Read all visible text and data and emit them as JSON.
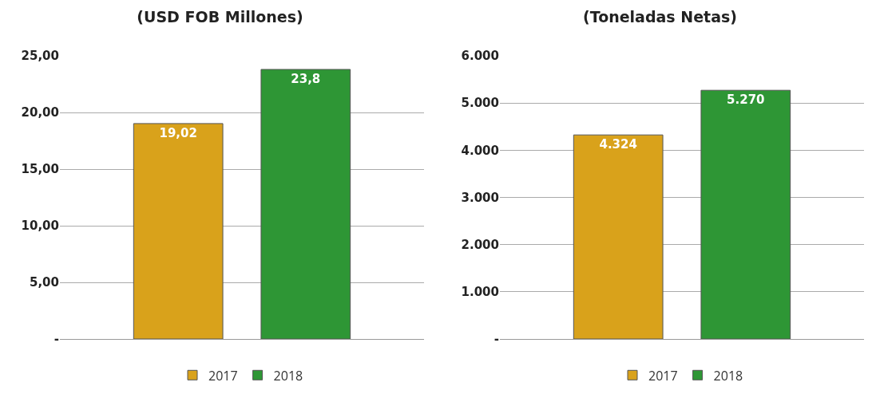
{
  "chart_data": [
    {
      "type": "bar",
      "title": "(USD FOB Millones)",
      "categories": [
        null
      ],
      "series": [
        {
          "name": "2017",
          "color": "#d9a21b",
          "values": [
            19.02
          ],
          "value_labels": [
            "19,02"
          ]
        },
        {
          "name": "2018",
          "color": "#2e9635",
          "values": [
            23.8
          ],
          "value_labels": [
            "23,8"
          ]
        }
      ],
      "ylim": [
        0,
        25
      ],
      "yticks": [
        {
          "value": 0,
          "label": "-"
        },
        {
          "value": 5,
          "label": "5,00"
        },
        {
          "value": 10,
          "label": "10,00"
        },
        {
          "value": 15,
          "label": "15,00"
        },
        {
          "value": 20,
          "label": "20,00"
        },
        {
          "value": 25,
          "label": "25,00"
        }
      ],
      "grid": "y",
      "legend": "bottom"
    },
    {
      "type": "bar",
      "title": "(Toneladas Netas)",
      "categories": [
        null
      ],
      "series": [
        {
          "name": "2017",
          "color": "#d9a21b",
          "values": [
            4324
          ],
          "value_labels": [
            "4.324"
          ]
        },
        {
          "name": "2018",
          "color": "#2e9635",
          "values": [
            5270
          ],
          "value_labels": [
            "5.270"
          ]
        }
      ],
      "ylim": [
        0,
        6000
      ],
      "yticks": [
        {
          "value": 0,
          "label": "-"
        },
        {
          "value": 1000,
          "label": "1.000"
        },
        {
          "value": 2000,
          "label": "2.000"
        },
        {
          "value": 3000,
          "label": "3.000"
        },
        {
          "value": 4000,
          "label": "4.000"
        },
        {
          "value": 5000,
          "label": "5.000"
        },
        {
          "value": 6000,
          "label": "6.000"
        }
      ],
      "grid": "y",
      "legend": "bottom"
    }
  ]
}
